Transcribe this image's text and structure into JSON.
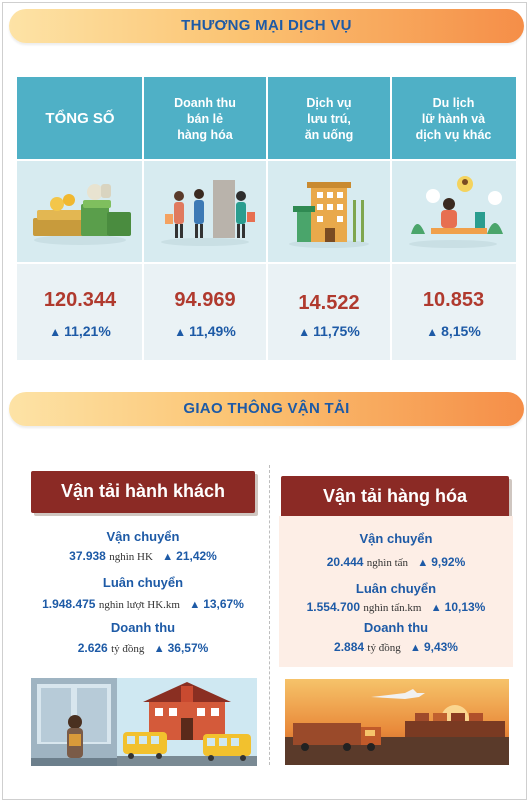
{
  "trade": {
    "title": "THƯƠNG MẠI DỊCH VỤ",
    "columns": [
      {
        "header": "TỔNG SỐ",
        "value": "120.344",
        "growth": "11,21%",
        "icon": "money-stack-icon"
      },
      {
        "header": "Doanh thu\nbán lẻ\nhàng hóa",
        "value": "94.969",
        "growth": "11,49%",
        "icon": "shoppers-icon"
      },
      {
        "header": "Dịch vụ\nlưu trú,\năn uống",
        "value": "14.522",
        "growth": "11,75%",
        "icon": "hotel-icon"
      },
      {
        "header": "Du lịch\nlữ hành và\ndịch vụ khác",
        "value": "10.853",
        "growth": "8,15%",
        "icon": "travel-icon"
      }
    ]
  },
  "transport": {
    "title": "GIAO THÔNG VẬN TẢI",
    "passenger": {
      "label": "Vận tải hành khách",
      "items": [
        {
          "label": "Vận chuyển",
          "value": "37.938",
          "unit": "nghìn HK",
          "growth": "21,42%"
        },
        {
          "label": "Luân chuyển",
          "value": "1.948.475",
          "unit": "nghìn lượt HK.km",
          "growth": "13,67%"
        },
        {
          "label": "Doanh thu",
          "value": "2.626",
          "unit": "tỷ đồng",
          "growth": "36,57%"
        }
      ]
    },
    "freight": {
      "label": "Vận tải hàng hóa",
      "items": [
        {
          "label": "Vận chuyển",
          "value": "20.444",
          "unit": "nghìn tấn",
          "growth": "9,92%"
        },
        {
          "label": "Luân chuyển",
          "value": "1.554.700",
          "unit": "nghìn tấn.km",
          "growth": "10,13%"
        },
        {
          "label": "Doanh thu",
          "value": "2.884",
          "unit": "tỷ đồng",
          "growth": "9,43%"
        }
      ]
    }
  },
  "colors": {
    "accent_blue": "#1d5aa6",
    "value_red": "#b03a2e",
    "header_teal": "#4fb0c6",
    "tag_maroon": "#8b2a25"
  }
}
